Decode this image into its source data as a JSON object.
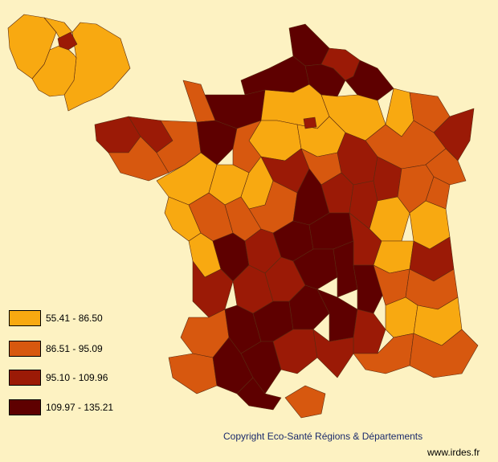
{
  "colors": {
    "background": "#fdf2c2",
    "class1": "#f8a911",
    "class2": "#d7580f",
    "class3": "#9b1a06",
    "class4": "#5e0000"
  },
  "legend": [
    {
      "label": "55.41 - 86.50",
      "color": "#f8a911"
    },
    {
      "label": "86.51 - 95.09",
      "color": "#d7580f"
    },
    {
      "label": "95.10 - 109.96",
      "color": "#9b1a06"
    },
    {
      "label": "109.97 - 135.21",
      "color": "#5e0000"
    }
  ],
  "footer": {
    "copyright": "Copyright Eco-Santé Régions & Départements",
    "website": "www.irdes.fr"
  }
}
